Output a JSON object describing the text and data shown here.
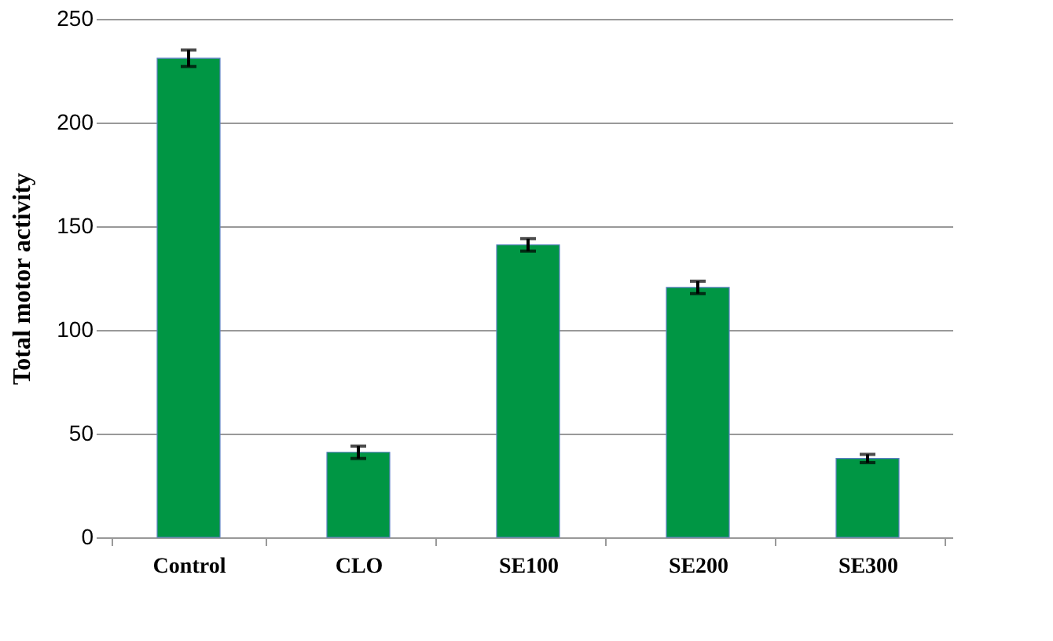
{
  "chart_data": {
    "type": "bar",
    "ylabel": "Total motor activity",
    "categories": [
      "Control",
      "CLO",
      "SE100",
      "SE200",
      "SE300"
    ],
    "values": [
      231,
      41,
      141,
      120.5,
      38
    ],
    "errors": [
      4,
      3,
      3,
      3,
      2
    ],
    "color": "#009644",
    "ylim": [
      0,
      250
    ],
    "yticks": [
      0,
      50,
      100,
      150,
      200,
      250
    ],
    "grid": "y"
  }
}
